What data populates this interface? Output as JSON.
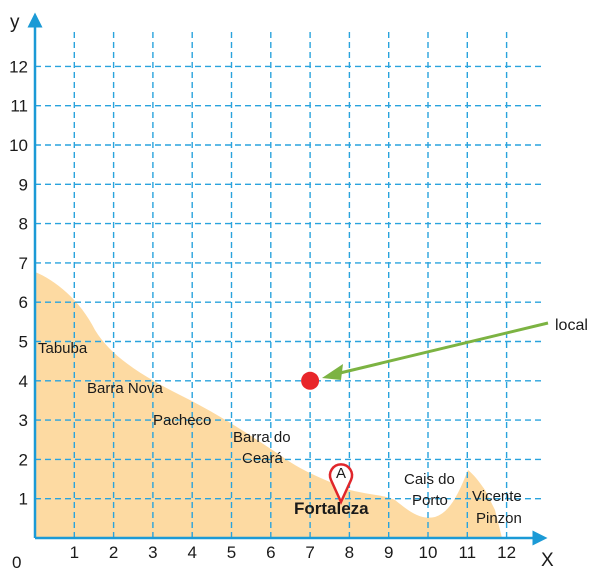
{
  "axes": {
    "x_name": "X",
    "y_name": "y",
    "origin": "0",
    "x_ticks": [
      "1",
      "2",
      "3",
      "4",
      "5",
      "6",
      "7",
      "8",
      "9",
      "10",
      "11",
      "12"
    ],
    "y_ticks": [
      "1",
      "2",
      "3",
      "4",
      "5",
      "6",
      "7",
      "8",
      "9",
      "10",
      "11",
      "12"
    ],
    "grid": true,
    "grid_color": "#29a3dd",
    "axis_color": "#1b9ad6"
  },
  "land": {
    "color": "#fddaa2"
  },
  "places": [
    {
      "key": "tabuba",
      "lines": [
        "Tabuba"
      ]
    },
    {
      "key": "barra_nova",
      "lines": [
        "Barra Nova"
      ]
    },
    {
      "key": "pacheco",
      "lines": [
        "Pacheco"
      ]
    },
    {
      "key": "barra_do_ceara",
      "lines": [
        "Barra do",
        "Ceará"
      ]
    },
    {
      "key": "cais_do_porto",
      "lines": [
        "Cais do",
        "Porto"
      ]
    },
    {
      "key": "vicente_pinzon",
      "lines": [
        "Vicente",
        "Pinzon"
      ]
    }
  ],
  "city": {
    "label": "Fortaleza",
    "marker_letter": "A",
    "marker_color": "#e0262b"
  },
  "point": {
    "x": 7,
    "y": 4,
    "color": "#e8262a"
  },
  "arrow": {
    "label": "local",
    "color": "#7cb342"
  }
}
